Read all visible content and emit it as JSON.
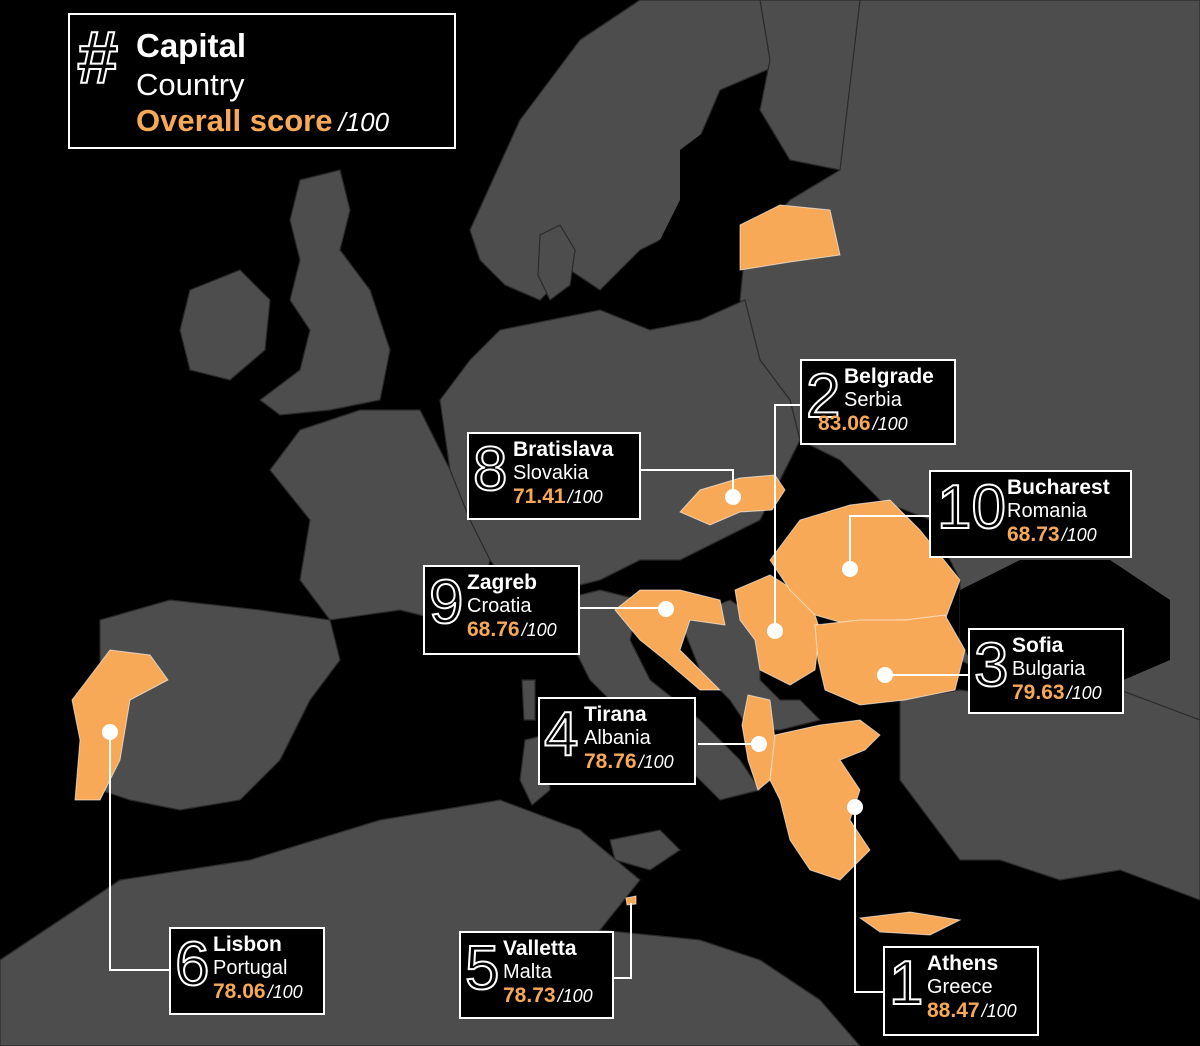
{
  "legend": {
    "symbol": "#",
    "capital_label": "Capital",
    "country_label": "Country",
    "score_label": "Overall score",
    "out_of": "/100"
  },
  "colors": {
    "highlight": "#f7a957",
    "land": "#4d4d4d",
    "background": "#000000"
  },
  "cities": [
    {
      "rank": "1",
      "capital": "Athens",
      "country": "Greece",
      "score": "88.47",
      "out_of": "/100"
    },
    {
      "rank": "2",
      "capital": "Belgrade",
      "country": "Serbia",
      "score": "83.06",
      "out_of": "/100"
    },
    {
      "rank": "3",
      "capital": "Sofia",
      "country": "Bulgaria",
      "score": "79.63",
      "out_of": "/100"
    },
    {
      "rank": "4",
      "capital": "Tirana",
      "country": "Albania",
      "score": "78.76",
      "out_of": "/100"
    },
    {
      "rank": "5",
      "capital": "Valletta",
      "country": "Malta",
      "score": "78.73",
      "out_of": "/100"
    },
    {
      "rank": "6",
      "capital": "Lisbon",
      "country": "Portugal",
      "score": "78.06",
      "out_of": "/100"
    },
    {
      "rank": "8",
      "capital": "Bratislava",
      "country": "Slovakia",
      "score": "71.41",
      "out_of": "/100"
    },
    {
      "rank": "9",
      "capital": "Zagreb",
      "country": "Croatia",
      "score": "68.76",
      "out_of": "/100"
    },
    {
      "rank": "10",
      "capital": "Bucharest",
      "country": "Romania",
      "score": "68.73",
      "out_of": "/100"
    }
  ]
}
